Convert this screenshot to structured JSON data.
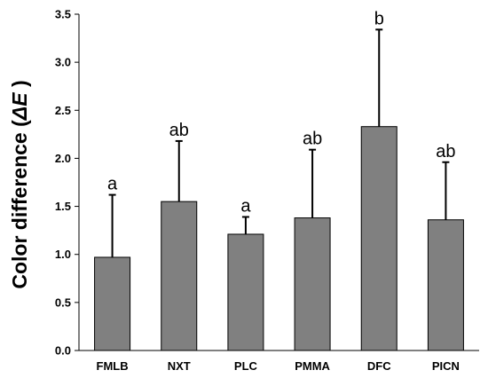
{
  "chart_data": {
    "type": "bar",
    "categories": [
      "FMLB",
      "NXT",
      "PLC",
      "PMMA",
      "DFC",
      "PICN"
    ],
    "values": [
      0.97,
      1.55,
      1.21,
      1.38,
      2.33,
      1.36
    ],
    "error_upper": [
      1.62,
      2.18,
      1.39,
      2.09,
      3.34,
      1.96
    ],
    "significance_letters": [
      "a",
      "ab",
      "a",
      "ab",
      "b",
      "ab"
    ],
    "ylabel_main": "Color difference (",
    "ylabel_symbol": "ΔE",
    "ylabel_close": " )",
    "ylim": [
      0,
      3.5
    ],
    "yticks": [
      "0.0",
      "0.5",
      "1.0",
      "1.5",
      "2.0",
      "2.5",
      "3.0",
      "3.5"
    ],
    "bar_color": "#808080",
    "grid": false
  }
}
